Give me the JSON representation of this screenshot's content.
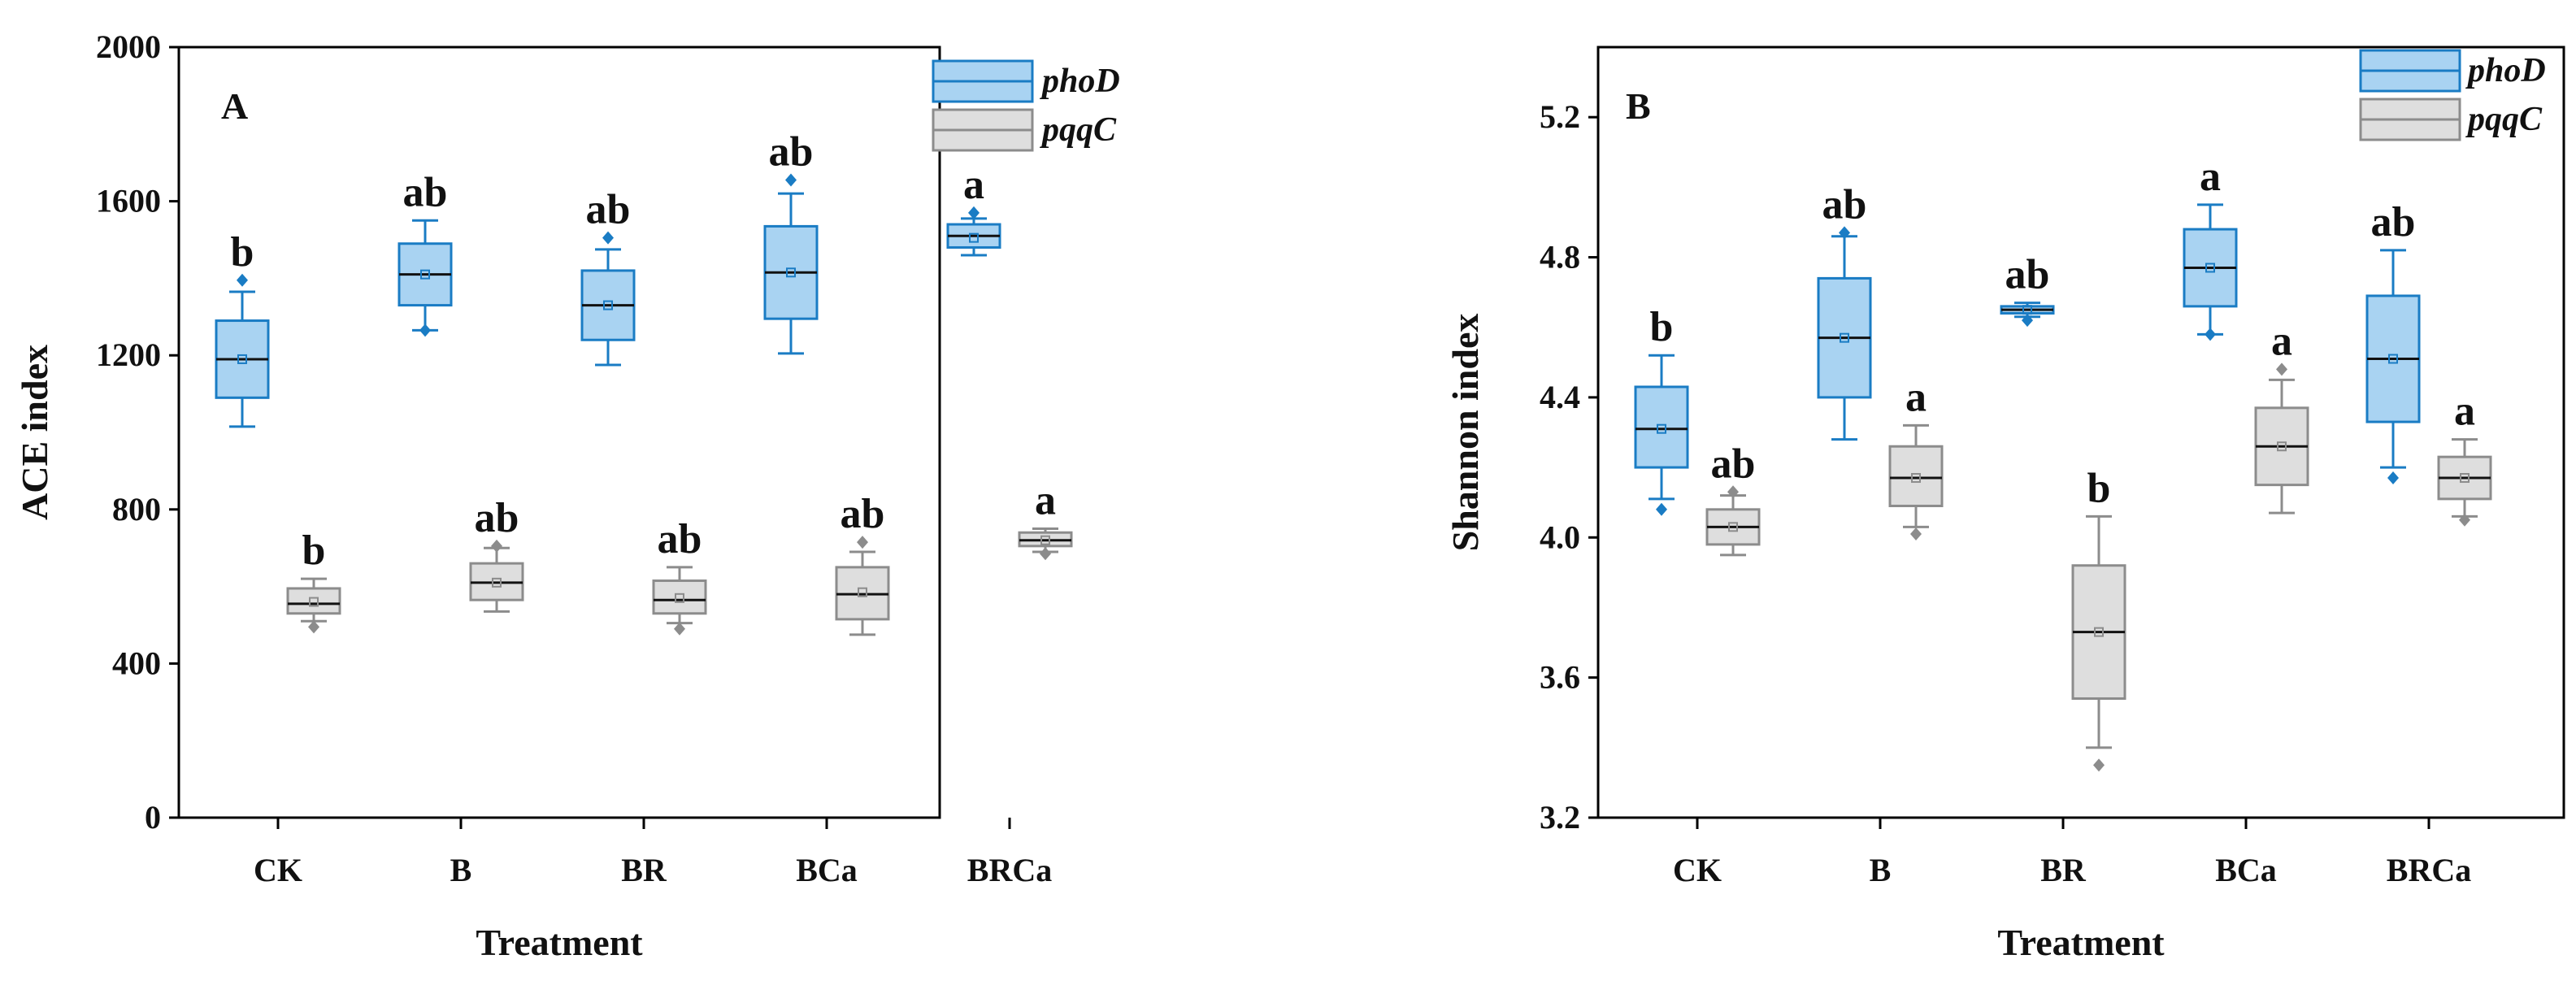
{
  "colors": {
    "phoD_fill": "#a9d3f2",
    "phoD_stroke": "#1a7cc4",
    "pqqC_fill": "#dedede",
    "pqqC_stroke": "#8c8c8c",
    "axis": "#000000"
  },
  "chart_data": [
    {
      "type": "box",
      "panel_label": "A",
      "xlabel": "Treatment",
      "ylabel": "ACE index",
      "ylim": [
        0,
        2000
      ],
      "yticks": [
        "0",
        "400",
        "800",
        "1200",
        "1600",
        "2000"
      ],
      "categories": [
        "CK",
        "B",
        "BR",
        "BCa",
        "BRCa"
      ],
      "legend": {
        "position": "top-right",
        "entries": [
          "phoD",
          "pqqC"
        ]
      },
      "series": [
        {
          "name": "phoD",
          "boxes": [
            {
              "category": "CK",
              "min": 1015,
              "q1": 1090,
              "median": 1190,
              "mean": 1190,
              "q3": 1290,
              "max": 1365,
              "outliers": [
                1395
              ],
              "letter": "b"
            },
            {
              "category": "B",
              "min": 1265,
              "q1": 1330,
              "median": 1410,
              "mean": 1410,
              "q3": 1490,
              "max": 1550,
              "outliers": [
                1265
              ],
              "letter": "ab"
            },
            {
              "category": "BR",
              "min": 1175,
              "q1": 1240,
              "median": 1330,
              "mean": 1330,
              "q3": 1420,
              "max": 1475,
              "outliers": [
                1505
              ],
              "letter": "ab"
            },
            {
              "category": "BCa",
              "min": 1205,
              "q1": 1295,
              "median": 1415,
              "mean": 1415,
              "q3": 1535,
              "max": 1620,
              "outliers": [
                1655
              ],
              "letter": "ab"
            },
            {
              "category": "BRCa",
              "min": 1460,
              "q1": 1480,
              "median": 1510,
              "mean": 1505,
              "q3": 1540,
              "max": 1555,
              "outliers": [
                1570
              ],
              "letter": "a"
            }
          ]
        },
        {
          "name": "pqqC",
          "boxes": [
            {
              "category": "CK",
              "min": 510,
              "q1": 530,
              "median": 555,
              "mean": 560,
              "q3": 595,
              "max": 620,
              "outliers": [
                495
              ],
              "letter": "b"
            },
            {
              "category": "B",
              "min": 535,
              "q1": 565,
              "median": 610,
              "mean": 610,
              "q3": 660,
              "max": 700,
              "outliers": [
                705
              ],
              "letter": "ab"
            },
            {
              "category": "BR",
              "min": 505,
              "q1": 530,
              "median": 565,
              "mean": 570,
              "q3": 615,
              "max": 650,
              "outliers": [
                490
              ],
              "letter": "ab"
            },
            {
              "category": "BCa",
              "min": 475,
              "q1": 515,
              "median": 580,
              "mean": 585,
              "q3": 650,
              "max": 690,
              "outliers": [
                715
              ],
              "letter": "ab"
            },
            {
              "category": "BRCa",
              "min": 690,
              "q1": 705,
              "median": 720,
              "mean": 720,
              "q3": 740,
              "max": 750,
              "outliers": [
                685
              ],
              "letter": "a"
            }
          ]
        }
      ]
    },
    {
      "type": "box",
      "panel_label": "B",
      "xlabel": "Treatment",
      "ylabel": "Shannon index",
      "ylim": [
        3.2,
        5.4
      ],
      "yticks": [
        "3.2",
        "3.6",
        "4.0",
        "4.4",
        "4.8",
        "5.2"
      ],
      "categories": [
        "CK",
        "B",
        "BR",
        "BCa",
        "BRCa"
      ],
      "legend": {
        "position": "top-right",
        "entries": [
          "phoD",
          "pqqC"
        ]
      },
      "series": [
        {
          "name": "phoD",
          "boxes": [
            {
              "category": "CK",
              "min": 4.11,
              "q1": 4.2,
              "median": 4.31,
              "mean": 4.31,
              "q3": 4.43,
              "max": 4.52,
              "outliers": [
                4.08
              ],
              "letter": "b"
            },
            {
              "category": "B",
              "min": 4.28,
              "q1": 4.4,
              "median": 4.57,
              "mean": 4.57,
              "q3": 4.74,
              "max": 4.86,
              "outliers": [
                4.87
              ],
              "letter": "ab"
            },
            {
              "category": "BR",
              "min": 4.63,
              "q1": 4.64,
              "median": 4.65,
              "mean": 4.65,
              "q3": 4.66,
              "max": 4.67,
              "outliers": [
                4.62
              ],
              "letter": "ab"
            },
            {
              "category": "BCa",
              "min": 4.58,
              "q1": 4.66,
              "median": 4.77,
              "mean": 4.77,
              "q3": 4.88,
              "max": 4.95,
              "outliers": [
                4.58
              ],
              "letter": "a"
            },
            {
              "category": "BRCa",
              "min": 4.2,
              "q1": 4.33,
              "median": 4.51,
              "mean": 4.51,
              "q3": 4.69,
              "max": 4.82,
              "outliers": [
                4.17
              ],
              "letter": "ab"
            }
          ]
        },
        {
          "name": "pqqC",
          "boxes": [
            {
              "category": "CK",
              "min": 3.95,
              "q1": 3.98,
              "median": 4.03,
              "mean": 4.03,
              "q3": 4.08,
              "max": 4.12,
              "outliers": [
                4.13
              ],
              "letter": "ab"
            },
            {
              "category": "B",
              "min": 4.03,
              "q1": 4.09,
              "median": 4.17,
              "mean": 4.17,
              "q3": 4.26,
              "max": 4.32,
              "outliers": [
                4.01
              ],
              "letter": "a"
            },
            {
              "category": "BR",
              "min": 3.4,
              "q1": 3.54,
              "median": 3.73,
              "mean": 3.73,
              "q3": 3.92,
              "max": 4.06,
              "outliers": [
                3.35
              ],
              "letter": "b"
            },
            {
              "category": "BCa",
              "min": 4.07,
              "q1": 4.15,
              "median": 4.26,
              "mean": 4.26,
              "q3": 4.37,
              "max": 4.45,
              "outliers": [
                4.48
              ],
              "letter": "a"
            },
            {
              "category": "BRCa",
              "min": 4.06,
              "q1": 4.11,
              "median": 4.17,
              "mean": 4.17,
              "q3": 4.23,
              "max": 4.28,
              "outliers": [
                4.05
              ],
              "letter": "a"
            }
          ]
        }
      ]
    }
  ]
}
